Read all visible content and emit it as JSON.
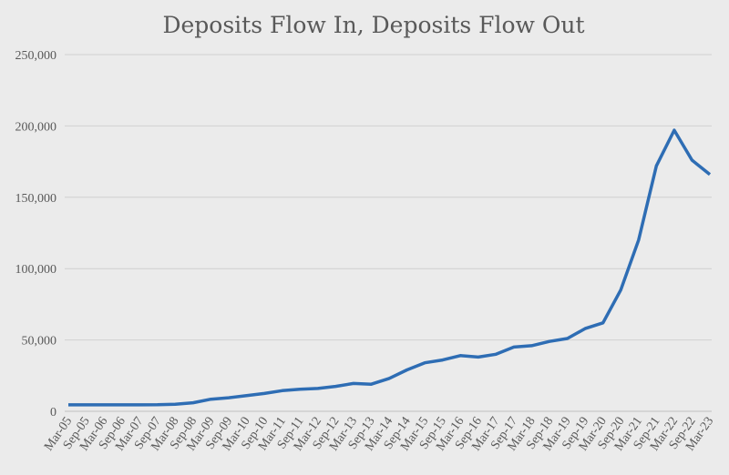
{
  "chart_data": {
    "type": "line",
    "title": "Deposits Flow In, Deposits Flow Out",
    "xlabel": "",
    "ylabel": "",
    "ylim": [
      0,
      250000
    ],
    "yticks": [
      0,
      50000,
      100000,
      150000,
      200000,
      250000
    ],
    "ytick_labels": [
      "0",
      "50,000",
      "100,000",
      "150,000",
      "200,000",
      "250,000"
    ],
    "grid": true,
    "legend": "none",
    "line_color": "#2e6db4",
    "categories": [
      "Mar-05",
      "Sep-05",
      "Mar-06",
      "Sep-06",
      "Mar-07",
      "Sep-07",
      "Mar-08",
      "Sep-08",
      "Mar-09",
      "Sep-09",
      "Mar-10",
      "Sep-10",
      "Mar-11",
      "Sep-11",
      "Mar-12",
      "Sep-12",
      "Mar-13",
      "Sep-13",
      "Mar-14",
      "Sep-14",
      "Mar-15",
      "Sep-15",
      "Mar-16",
      "Sep-16",
      "Mar-17",
      "Sep-17",
      "Mar-18",
      "Sep-18",
      "Mar-19",
      "Sep-19",
      "Mar-20",
      "Sep-20",
      "Mar-21",
      "Sep-21",
      "Mar-22",
      "Sep-22",
      "Mar-23"
    ],
    "series": [
      {
        "name": "Deposits",
        "values": [
          4500,
          4500,
          4500,
          4500,
          4500,
          4600,
          5000,
          6000,
          8500,
          9500,
          11000,
          12500,
          14500,
          15500,
          16000,
          17500,
          19500,
          19000,
          23000,
          29000,
          34000,
          36000,
          39000,
          38000,
          40000,
          45000,
          46000,
          49000,
          51000,
          58000,
          62000,
          85000,
          120000,
          172000,
          197000,
          176000,
          166000
        ]
      }
    ]
  }
}
